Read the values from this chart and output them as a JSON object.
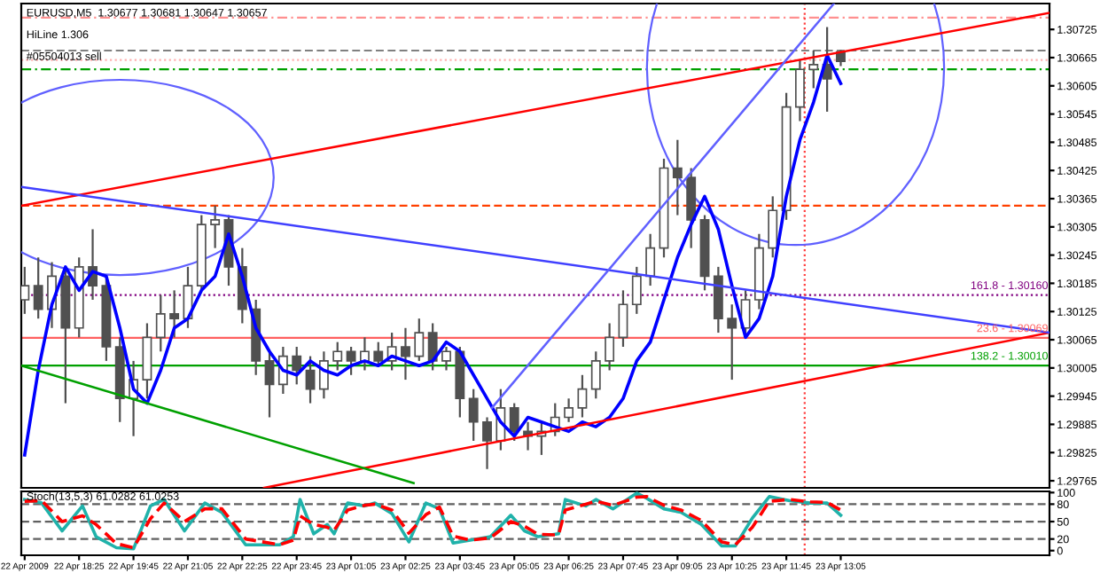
{
  "chart_data": [
    {
      "type": "candlestick",
      "color": "#505050",
      "annotations": [
        "EURUSD,M5  1.30677 1.30681 1.30647 1.30657",
        "HiLine 1.306",
        "#05504013 sell",
        {
          "text": "161.8 - 1.30160",
          "x": "2009-04-23T18:10",
          "y": 1.3016
        },
        {
          "text": "23.6 - 1.30069",
          "x": "2009-04-23T18:10",
          "y": 1.30069
        },
        {
          "text": "138.2 - 1.30010",
          "x": "2009-04-23T18:10",
          "y": 1.3001
        }
      ],
      "x": [
        "2009-04-22T17:05",
        "2009-04-22T17:25",
        "2009-04-22T17:45",
        "2009-04-22T18:05",
        "2009-04-22T18:25",
        "2009-04-22T18:45",
        "2009-04-22T19:05",
        "2009-04-22T19:25",
        "2009-04-22T19:45",
        "2009-04-22T20:05",
        "2009-04-22T20:25",
        "2009-04-22T20:45",
        "2009-04-22T21:05",
        "2009-04-22T21:25",
        "2009-04-22T21:45",
        "2009-04-22T22:05",
        "2009-04-22T22:25",
        "2009-04-22T22:45",
        "2009-04-22T23:05",
        "2009-04-22T23:25",
        "2009-04-22T23:45",
        "2009-04-23T00:05",
        "2009-04-23T00:25",
        "2009-04-23T00:45",
        "2009-04-23T01:05",
        "2009-04-23T01:25",
        "2009-04-23T01:45",
        "2009-04-23T02:05",
        "2009-04-23T02:25",
        "2009-04-23T02:45",
        "2009-04-23T03:05",
        "2009-04-23T03:25",
        "2009-04-23T03:45",
        "2009-04-23T04:05",
        "2009-04-23T04:25",
        "2009-04-23T04:45",
        "2009-04-23T05:05",
        "2009-04-23T05:25",
        "2009-04-23T05:45",
        "2009-04-23T06:05",
        "2009-04-23T06:25",
        "2009-04-23T06:45",
        "2009-04-23T07:05",
        "2009-04-23T07:25",
        "2009-04-23T07:45",
        "2009-04-23T08:05",
        "2009-04-23T08:25",
        "2009-04-23T08:45",
        "2009-04-23T09:05",
        "2009-04-23T09:25",
        "2009-04-23T09:45",
        "2009-04-23T10:05",
        "2009-04-23T10:25",
        "2009-04-23T10:45",
        "2009-04-23T11:05",
        "2009-04-23T11:25",
        "2009-04-23T11:45",
        "2009-04-23T12:05",
        "2009-04-23T12:25",
        "2009-04-23T12:45",
        "2009-04-23T13:05"
      ],
      "ohlc": [
        [
          1.3015,
          1.3022,
          1.3012,
          1.3018
        ],
        [
          1.3018,
          1.3024,
          1.3011,
          1.3013
        ],
        [
          1.3013,
          1.3023,
          1.3009,
          1.302
        ],
        [
          1.302,
          1.3022,
          1.2993,
          1.3009
        ],
        [
          1.3009,
          1.3024,
          1.3007,
          1.3022
        ],
        [
          1.3022,
          1.303,
          1.3015,
          1.3018
        ],
        [
          1.3018,
          1.302,
          1.3002,
          1.3005
        ],
        [
          1.3005,
          1.3007,
          1.2989,
          1.2994
        ],
        [
          1.2994,
          1.3002,
          1.2986,
          1.2998
        ],
        [
          1.2998,
          1.301,
          1.2994,
          1.3007
        ],
        [
          1.3007,
          1.3016,
          1.3004,
          1.3012
        ],
        [
          1.3012,
          1.3017,
          1.3007,
          1.3011
        ],
        [
          1.3011,
          1.3022,
          1.3009,
          1.3018
        ],
        [
          1.3018,
          1.3033,
          1.3017,
          1.3031
        ],
        [
          1.3031,
          1.3035,
          1.3026,
          1.3032
        ],
        [
          1.3032,
          1.3033,
          1.3018,
          1.3022
        ],
        [
          1.3022,
          1.3026,
          1.301,
          1.3013
        ],
        [
          1.3013,
          1.3015,
          1.2999,
          1.3002
        ],
        [
          1.3002,
          1.3004,
          1.299,
          1.2997
        ],
        [
          1.2997,
          1.3005,
          1.2995,
          1.3003
        ],
        [
          1.3003,
          1.3005,
          1.2997,
          1.3
        ],
        [
          1.3,
          1.3003,
          1.2993,
          1.2996
        ],
        [
          1.2996,
          1.3004,
          1.2994,
          1.3002
        ],
        [
          1.3002,
          1.3006,
          1.3,
          1.3004
        ],
        [
          1.3004,
          1.3005,
          1.2999,
          1.3002
        ],
        [
          1.3002,
          1.3007,
          1.3,
          1.3004
        ],
        [
          1.3004,
          1.3006,
          1.3001,
          1.3002
        ],
        [
          1.3002,
          1.3008,
          1.3,
          1.3005
        ],
        [
          1.3005,
          1.3009,
          1.2998,
          1.3003
        ],
        [
          1.3003,
          1.3011,
          1.3002,
          1.3008
        ],
        [
          1.3008,
          1.301,
          1.3,
          1.3002
        ],
        [
          1.3002,
          1.3005,
          1.3,
          1.3004
        ],
        [
          1.3004,
          1.3005,
          1.299,
          1.2994
        ],
        [
          1.2994,
          1.2996,
          1.2985,
          1.2989
        ],
        [
          1.2989,
          1.299,
          1.2979,
          1.2985
        ],
        [
          1.2985,
          1.2996,
          1.2983,
          1.2992
        ],
        [
          1.2992,
          1.2993,
          1.2985,
          1.2987
        ],
        [
          1.2987,
          1.2989,
          1.2983,
          1.2986
        ],
        [
          1.2986,
          1.2989,
          1.2982,
          1.2987
        ],
        [
          1.2987,
          1.2993,
          1.2986,
          1.299
        ],
        [
          1.299,
          1.2994,
          1.2989,
          1.2992
        ],
        [
          1.2992,
          1.2999,
          1.299,
          1.2996
        ],
        [
          1.2996,
          1.3004,
          1.2994,
          1.3002
        ],
        [
          1.3002,
          1.301,
          1.3,
          1.3007
        ],
        [
          1.3007,
          1.3017,
          1.3005,
          1.3014
        ],
        [
          1.3014,
          1.3022,
          1.3012,
          1.302
        ],
        [
          1.302,
          1.3029,
          1.3018,
          1.3026
        ],
        [
          1.3026,
          1.3045,
          1.3024,
          1.3043
        ],
        [
          1.3043,
          1.3049,
          1.3033,
          1.3041
        ],
        [
          1.3041,
          1.3043,
          1.3026,
          1.3032
        ],
        [
          1.3032,
          1.3033,
          1.3017,
          1.302
        ],
        [
          1.302,
          1.3022,
          1.3008,
          1.3011
        ],
        [
          1.3011,
          1.3014,
          1.2998,
          1.3009
        ],
        [
          1.3009,
          1.3017,
          1.3007,
          1.3015
        ],
        [
          1.3015,
          1.3029,
          1.3013,
          1.3026
        ],
        [
          1.3026,
          1.3037,
          1.3024,
          1.3034
        ],
        [
          1.3034,
          1.3059,
          1.3032,
          1.3056
        ],
        [
          1.3056,
          1.3066,
          1.3053,
          1.3064
        ],
        [
          1.3064,
          1.3068,
          1.306,
          1.3065
        ],
        [
          1.3065,
          1.3073,
          1.3055,
          1.3062
        ],
        [
          1.30677,
          1.30681,
          1.30647,
          1.30657
        ]
      ],
      "series": [
        {
          "type": "line",
          "color": "#0000ff",
          "x": [
            "2009-04-22T17:05",
            "2009-04-22T17:25",
            "2009-04-22T17:45",
            "2009-04-22T18:05",
            "2009-04-22T18:25",
            "2009-04-22T18:45",
            "2009-04-22T19:05",
            "2009-04-22T19:25",
            "2009-04-22T19:45",
            "2009-04-22T20:05",
            "2009-04-22T20:25",
            "2009-04-22T20:45",
            "2009-04-22T21:05",
            "2009-04-22T21:25",
            "2009-04-22T21:45",
            "2009-04-22T22:05",
            "2009-04-22T22:25",
            "2009-04-22T22:45",
            "2009-04-22T23:05",
            "2009-04-22T23:25",
            "2009-04-22T23:45",
            "2009-04-23T00:05",
            "2009-04-23T00:25",
            "2009-04-23T00:45",
            "2009-04-23T01:05",
            "2009-04-23T01:25",
            "2009-04-23T01:45",
            "2009-04-23T02:05",
            "2009-04-23T02:25",
            "2009-04-23T02:45",
            "2009-04-23T03:05",
            "2009-04-23T03:25",
            "2009-04-23T03:45",
            "2009-04-23T04:05",
            "2009-04-23T04:25",
            "2009-04-23T04:45",
            "2009-04-23T05:05",
            "2009-04-23T05:25",
            "2009-04-23T05:45",
            "2009-04-23T06:05",
            "2009-04-23T06:25",
            "2009-04-23T06:45",
            "2009-04-23T07:05",
            "2009-04-23T07:25",
            "2009-04-23T07:45",
            "2009-04-23T08:05",
            "2009-04-23T08:25",
            "2009-04-23T08:45",
            "2009-04-23T09:05",
            "2009-04-23T09:25",
            "2009-04-23T09:45",
            "2009-04-23T10:05",
            "2009-04-23T10:25",
            "2009-04-23T10:45",
            "2009-04-23T11:05",
            "2009-04-23T11:25",
            "2009-04-23T11:45",
            "2009-04-23T12:05",
            "2009-04-23T12:25",
            "2009-04-23T12:45",
            "2009-04-23T13:05"
          ],
          "values": [
            1.2982,
            1.3,
            1.3014,
            1.3022,
            1.3017,
            1.3021,
            1.302,
            1.3009,
            1.2996,
            1.2993,
            1.3,
            1.3009,
            1.3011,
            1.3017,
            1.302,
            1.3029,
            1.302,
            1.3009,
            1.3004,
            1.3,
            1.2999,
            1.3002,
            1.3,
            1.2999,
            1.3001,
            1.3002,
            1.3001,
            1.3003,
            1.3002,
            1.3001,
            1.3002,
            1.3006,
            1.3004,
            1.2999,
            1.2994,
            1.2989,
            1.2986,
            1.299,
            1.2989,
            1.2988,
            1.2987,
            1.2989,
            1.2988,
            1.299,
            1.2994,
            1.3002,
            1.3006,
            1.3015,
            1.3024,
            1.3031,
            1.3037,
            1.303,
            1.3018,
            1.3007,
            1.3011,
            1.302,
            1.3037,
            1.3049,
            1.3057,
            1.3067,
            1.3061
          ]
        },
        {
          "type": "line",
          "color": "#ff0000",
          "x": [
            "2009-04-22T17:00",
            "2009-04-23T18:12"
          ],
          "values": [
            1.3035,
            1.3076
          ]
        },
        {
          "type": "line",
          "color": "#ff0000",
          "x": [
            "2009-04-22T22:57",
            "2009-04-23T18:12"
          ],
          "values": [
            1.2975,
            1.3008
          ]
        },
        {
          "type": "line",
          "color": "#4040ff",
          "x": [
            "2009-04-22T17:00",
            "2009-04-23T18:12"
          ],
          "values": [
            1.3039,
            1.3008
          ]
        },
        {
          "type": "line",
          "color": "#00a000",
          "x": [
            "2009-04-22T17:00",
            "2009-04-23T02:37"
          ],
          "values": [
            1.3001,
            1.2976
          ]
        },
        {
          "type": "line",
          "color": "#6060ff",
          "x": [
            "2009-04-23T04:32",
            "2009-04-23T12:55"
          ],
          "values": [
            1.2992,
            1.3078
          ]
        }
      ],
      "ref_lines": [
        {
          "axis": "y",
          "value": 1.3075,
          "color": "#ff9090",
          "line_style": "dashdot"
        },
        {
          "axis": "y",
          "value": 1.3068,
          "color": "#808080",
          "line_style": "dashed"
        },
        {
          "axis": "y",
          "value": 1.3066,
          "color": "#ffb0b0",
          "line_style": "dotted"
        },
        {
          "axis": "y",
          "value": 1.3064,
          "color": "#00a000",
          "line_style": "dashdot"
        },
        {
          "axis": "y",
          "value": 1.3035,
          "color": "#ff4000",
          "line_style": "dashed"
        },
        {
          "axis": "y",
          "value": 1.3016,
          "color": "#800080",
          "line_style": "dotted"
        },
        {
          "axis": "y",
          "value": 1.30069,
          "color": "#ff6060",
          "line_style": "solid"
        },
        {
          "axis": "y",
          "value": 1.3001,
          "color": "#00a000",
          "line_style": "solid"
        },
        {
          "axis": "x",
          "value": "2009-04-23T12:12",
          "color": "#ff4040",
          "line_style": "dotted"
        }
      ],
      "xlim": [
        "2009-04-22T17:00",
        "2009-04-23T18:12"
      ],
      "ylim": [
        1.2975,
        1.3078
      ],
      "yticks": [
        1.29765,
        1.29825,
        1.29885,
        1.29945,
        1.30005,
        1.30065,
        1.30125,
        1.30185,
        1.30245,
        1.30305,
        1.30365,
        1.30425,
        1.30485,
        1.30545,
        1.30605,
        1.30665,
        1.30725
      ],
      "tick_labels": "y",
      "grid": false,
      "legend": false
    },
    {
      "type": "line",
      "annotations": [
        "Stoch(13,5,3) 61.0282 61.0253"
      ],
      "series": [
        {
          "color": "#20b2aa",
          "line_style": "solid",
          "x": [
            "2009-04-22T17:05",
            "2009-04-22T17:30",
            "2009-04-22T18:00",
            "2009-04-22T18:30",
            "2009-04-22T18:50",
            "2009-04-22T19:20",
            "2009-04-22T19:45",
            "2009-04-22T20:10",
            "2009-04-22T20:30",
            "2009-04-22T21:00",
            "2009-04-22T21:30",
            "2009-04-22T21:55",
            "2009-04-22T22:30",
            "2009-04-22T23:20",
            "2009-04-22T23:40",
            "2009-04-22T23:50",
            "2009-04-23T00:10",
            "2009-04-23T00:30",
            "2009-04-23T00:40",
            "2009-04-23T01:00",
            "2009-04-23T01:25",
            "2009-04-23T01:40",
            "2009-04-23T02:05",
            "2009-04-23T02:30",
            "2009-04-23T02:55",
            "2009-04-23T03:15",
            "2009-04-23T03:35",
            "2009-04-23T04:00",
            "2009-04-23T04:30",
            "2009-04-23T05:00",
            "2009-04-23T05:20",
            "2009-04-23T05:40",
            "2009-04-23T06:10",
            "2009-04-23T06:20",
            "2009-04-23T06:50",
            "2009-04-23T07:05",
            "2009-04-23T07:30",
            "2009-04-23T08:05",
            "2009-04-23T08:20",
            "2009-04-23T08:45",
            "2009-04-23T09:10",
            "2009-04-23T09:40",
            "2009-04-23T10:10",
            "2009-04-23T10:30",
            "2009-04-23T10:55",
            "2009-04-23T11:20",
            "2009-04-23T11:50",
            "2009-04-23T12:20",
            "2009-04-23T12:45",
            "2009-04-23T13:05"
          ],
          "values": [
            88,
            82,
            34,
            77,
            24,
            5,
            3,
            77,
            88,
            34,
            82,
            66,
            10,
            10,
            24,
            88,
            29,
            45,
            29,
            82,
            77,
            82,
            64,
            15,
            82,
            72,
            13,
            18,
            24,
            61,
            34,
            24,
            29,
            88,
            77,
            88,
            72,
            99,
            90,
            72,
            66,
            45,
            8,
            8,
            56,
            93,
            86,
            82,
            82,
            61
          ]
        },
        {
          "color": "#ff0000",
          "line_style": "dashed",
          "x": [
            "2009-04-22T17:05",
            "2009-04-22T17:30",
            "2009-04-22T18:00",
            "2009-04-22T18:30",
            "2009-04-22T18:50",
            "2009-04-22T19:20",
            "2009-04-22T19:45",
            "2009-04-22T20:10",
            "2009-04-22T20:30",
            "2009-04-22T21:00",
            "2009-04-22T21:30",
            "2009-04-22T21:55",
            "2009-04-22T22:30",
            "2009-04-22T23:20",
            "2009-04-22T23:40",
            "2009-04-22T23:50",
            "2009-04-23T00:10",
            "2009-04-23T00:30",
            "2009-04-23T00:40",
            "2009-04-23T01:00",
            "2009-04-23T01:25",
            "2009-04-23T01:40",
            "2009-04-23T02:05",
            "2009-04-23T02:30",
            "2009-04-23T02:55",
            "2009-04-23T03:15",
            "2009-04-23T03:35",
            "2009-04-23T04:00",
            "2009-04-23T04:30",
            "2009-04-23T05:00",
            "2009-04-23T05:20",
            "2009-04-23T05:40",
            "2009-04-23T06:10",
            "2009-04-23T06:20",
            "2009-04-23T06:50",
            "2009-04-23T07:05",
            "2009-04-23T07:30",
            "2009-04-23T08:05",
            "2009-04-23T08:20",
            "2009-04-23T08:45",
            "2009-04-23T09:10",
            "2009-04-23T09:40",
            "2009-04-23T10:10",
            "2009-04-23T10:30",
            "2009-04-23T10:55",
            "2009-04-23T11:20",
            "2009-04-23T11:50",
            "2009-04-23T12:20",
            "2009-04-23T12:45",
            "2009-04-23T13:05"
          ],
          "values": [
            85,
            86,
            50,
            60,
            45,
            12,
            5,
            55,
            82,
            50,
            72,
            72,
            20,
            10,
            18,
            60,
            45,
            40,
            35,
            70,
            78,
            80,
            70,
            30,
            62,
            75,
            25,
            18,
            22,
            50,
            42,
            28,
            27,
            70,
            80,
            85,
            78,
            92,
            93,
            78,
            70,
            52,
            15,
            10,
            40,
            85,
            88,
            84,
            83,
            70
          ]
        }
      ],
      "ref_lines": [
        {
          "axis": "y",
          "value": 20,
          "color": "#606060",
          "line_style": "dashed"
        },
        {
          "axis": "y",
          "value": 50,
          "color": "#606060",
          "line_style": "dashed"
        },
        {
          "axis": "y",
          "value": 80,
          "color": "#606060",
          "line_style": "dashed"
        },
        {
          "axis": "x",
          "value": "2009-04-23T12:12",
          "color": "#ff4040",
          "line_style": "dotted"
        }
      ],
      "xlim": [
        "2009-04-22T17:00",
        "2009-04-23T18:12"
      ],
      "xticks": [
        {
          "value": "2009-04-22T17:05",
          "label": "22 Apr 2009"
        },
        {
          "value": "2009-04-22T18:25",
          "label": "22 Apr 18:25"
        },
        {
          "value": "2009-04-22T19:45",
          "label": "22 Apr 19:45"
        },
        {
          "value": "2009-04-22T21:05",
          "label": "22 Apr 21:05"
        },
        {
          "value": "2009-04-22T22:25",
          "label": "22 Apr 22:25"
        },
        {
          "value": "2009-04-22T23:45",
          "label": "22 Apr 23:45"
        },
        {
          "value": "2009-04-23T01:05",
          "label": "23 Apr 01:05"
        },
        {
          "value": "2009-04-23T02:25",
          "label": "23 Apr 02:25"
        },
        {
          "value": "2009-04-23T03:45",
          "label": "23 Apr 03:45"
        },
        {
          "value": "2009-04-23T05:05",
          "label": "23 Apr 05:05"
        },
        {
          "value": "2009-04-23T06:25",
          "label": "23 Apr 06:25"
        },
        {
          "value": "2009-04-23T07:45",
          "label": "23 Apr 07:45"
        },
        {
          "value": "2009-04-23T09:05",
          "label": "23 Apr 09:05"
        },
        {
          "value": "2009-04-23T10:25",
          "label": "23 Apr 10:25"
        },
        {
          "value": "2009-04-23T11:45",
          "label": "23 Apr 11:45"
        },
        {
          "value": "2009-04-23T13:05",
          "label": "23 Apr 13:05"
        }
      ],
      "ylim": [
        -8,
        102
      ],
      "yticks": [
        0,
        20,
        50,
        80,
        100
      ],
      "grid": false,
      "legend": false
    }
  ]
}
